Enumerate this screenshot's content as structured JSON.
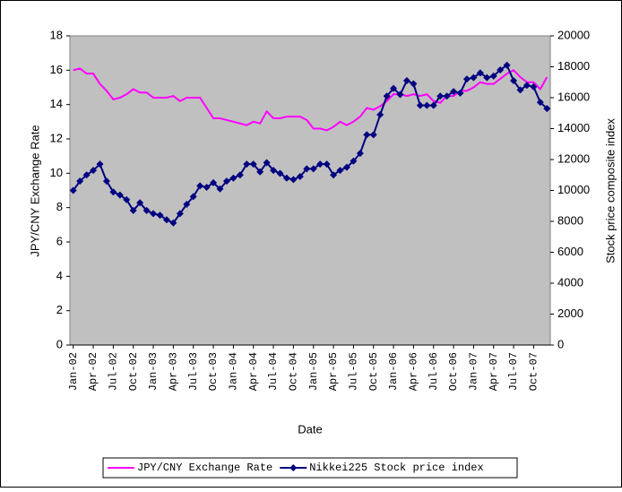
{
  "chart_data": {
    "type": "line",
    "x_label": "Date",
    "y_label": "JPY/CNY Exchange Rate",
    "y2_label": "Stock price composite index",
    "categories": [
      "Jan-02",
      null,
      null,
      "Apr-02",
      null,
      null,
      "Jul-02",
      null,
      null,
      "Oct-02",
      null,
      null,
      "Jan-03",
      null,
      null,
      "Apr-03",
      null,
      null,
      "Jul-03",
      null,
      null,
      "Oct-03",
      null,
      null,
      "Jan-04",
      null,
      null,
      "Apr-04",
      null,
      null,
      "Jul-04",
      null,
      null,
      "Oct-04",
      null,
      null,
      "Jan-05",
      null,
      null,
      "Apr-05",
      null,
      null,
      "Jul-05",
      null,
      null,
      "Oct-05",
      null,
      null,
      "Jan-06",
      null,
      null,
      "Apr-06",
      null,
      null,
      "Jul-06",
      null,
      null,
      "Oct-06",
      null,
      null,
      "Jan-07",
      null,
      null,
      "Apr-07",
      null,
      null,
      "Jul-07",
      null,
      null,
      "Oct-07",
      null,
      null
    ],
    "series": [
      {
        "name": "JPY/CNY Exchange Rate",
        "color": "#ff00ff",
        "axis": "y",
        "values": [
          16.0,
          16.1,
          15.8,
          15.8,
          15.2,
          14.8,
          14.3,
          14.4,
          14.6,
          14.9,
          14.7,
          14.7,
          14.4,
          14.4,
          14.4,
          14.5,
          14.2,
          14.4,
          14.4,
          14.4,
          13.8,
          13.2,
          13.2,
          13.1,
          13.0,
          12.9,
          12.8,
          13.0,
          12.9,
          13.6,
          13.2,
          13.2,
          13.3,
          13.3,
          13.3,
          13.1,
          12.6,
          12.6,
          12.5,
          12.7,
          13.0,
          12.8,
          13.0,
          13.3,
          13.8,
          13.7,
          13.9,
          14.2,
          14.6,
          14.6,
          14.5,
          14.6,
          14.5,
          14.6,
          14.2,
          14.1,
          14.5,
          14.5,
          14.8,
          14.8,
          15.0,
          15.3,
          15.2,
          15.2,
          15.5,
          15.8,
          16.0,
          15.6,
          15.3,
          15.3,
          14.9,
          15.6
        ]
      },
      {
        "name": "Nikkei225 Stock price index",
        "color": "#000080",
        "axis": "y2",
        "values": [
          10000,
          10600,
          11000,
          11300,
          11700,
          10600,
          9900,
          9700,
          9400,
          8700,
          9200,
          8700,
          8500,
          8400,
          8100,
          7900,
          8500,
          9100,
          9600,
          10300,
          10200,
          10500,
          10100,
          10600,
          10800,
          11000,
          11700,
          11700,
          11200,
          11800,
          11300,
          11100,
          10800,
          10700,
          10900,
          11400,
          11400,
          11700,
          11700,
          11000,
          11300,
          11500,
          11900,
          12400,
          13600,
          13600,
          14900,
          16100,
          16600,
          16200,
          17100,
          16900,
          15500,
          15500,
          15500,
          16100,
          16100,
          16400,
          16300,
          17200,
          17300,
          17600,
          17300,
          17400,
          17800,
          18100,
          17100,
          16500,
          16800,
          16700,
          15700,
          15300
        ]
      }
    ],
    "ylim": [
      0,
      18
    ],
    "yticks": [
      0,
      2,
      4,
      6,
      8,
      10,
      12,
      14,
      16,
      18
    ],
    "y2lim": [
      0,
      20000
    ],
    "y2ticks": [
      0,
      2000,
      4000,
      6000,
      8000,
      10000,
      12000,
      14000,
      16000,
      18000,
      20000
    ],
    "legend": "bottom",
    "plot_background": "#c0c0c0"
  }
}
